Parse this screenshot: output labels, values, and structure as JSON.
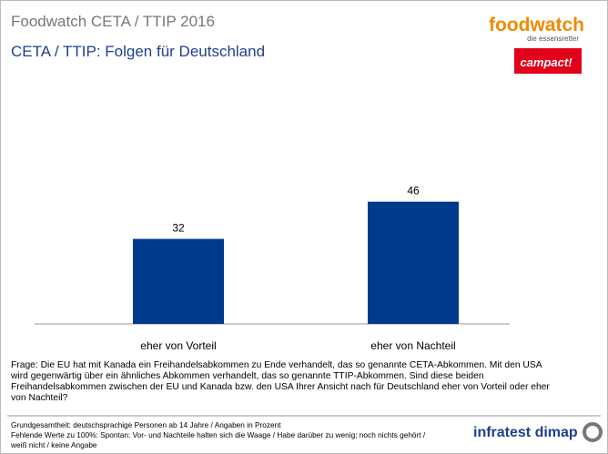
{
  "chart_data": {
    "type": "bar",
    "title": "Foodwatch CETA / TTIP 2016",
    "subtitle": "CETA / TTIP: Folgen für Deutschland",
    "categories": [
      "eher von Vorteil",
      "eher von Nachteil"
    ],
    "values": [
      32,
      46
    ],
    "color": "#003a8c"
  },
  "question": [
    "Frage: Die EU hat mit Kanada ein Freihandelsabkommen zu Ende verhandelt, das so genannte CETA-Abkommen. Mit den USA",
    "wird gegenwärtig über ein ähnliches Abkommen verhandelt, das so genannte TTIP-Abkommen. Sind diese beiden",
    "Freihandelsabkommen zwischen der EU und Kanada bzw. den USA Ihrer Ansicht nach für Deutschland eher von Vorteil oder eher",
    "von Nachteil?"
  ],
  "footnotes": [
    "Grundgesamtheit: deutschsprachige Personen ab 14 Jahre / Angaben in Prozent",
    "Fehlende Werte zu 100%: Spontan: Vor- und Nachteile halten sich die Waage / Habe darüber zu wenig; noch nichts gehört /",
    "weiß nicht / keine Angabe"
  ],
  "logos": {
    "foodwatch": "foodwatch",
    "foodwatch_tagline": "die essensretter",
    "campact": "campact!",
    "infratest": "infratest dimap"
  }
}
